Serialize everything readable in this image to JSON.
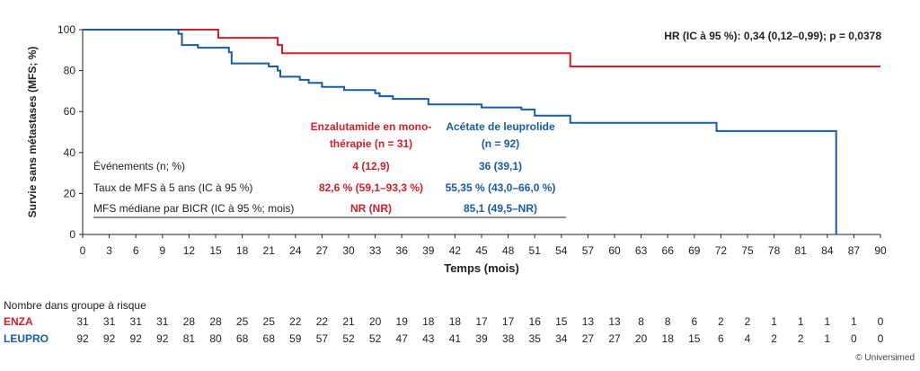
{
  "chart_data": {
    "type": "line",
    "step": true,
    "ylabel": "Survie sans métastases (MFS; %)",
    "xlabel": "Temps (mois)",
    "xlim": [
      0,
      90
    ],
    "ylim": [
      0,
      100
    ],
    "x_ticks": [
      0,
      3,
      6,
      9,
      12,
      15,
      18,
      21,
      24,
      27,
      30,
      33,
      36,
      39,
      42,
      45,
      48,
      51,
      54,
      57,
      60,
      63,
      66,
      69,
      72,
      75,
      78,
      81,
      84,
      87,
      90
    ],
    "y_ticks": [
      0,
      20,
      40,
      60,
      80,
      100
    ],
    "hr_text": "HR (IC à 95 %): 0,34 (0,12–0,99); p = 0,0378",
    "series": [
      {
        "name": "ENZA",
        "color": "#d0202a",
        "points": [
          [
            0,
            100
          ],
          [
            15.3,
            100
          ],
          [
            15.3,
            96
          ],
          [
            22,
            96
          ],
          [
            22,
            92.5
          ],
          [
            22.5,
            92.5
          ],
          [
            22.5,
            88.5
          ],
          [
            55,
            88.5
          ],
          [
            55,
            82
          ],
          [
            90,
            82
          ]
        ]
      },
      {
        "name": "LEUPRO",
        "color": "#1a5aa8",
        "points": [
          [
            0,
            100
          ],
          [
            10.8,
            100
          ],
          [
            10.8,
            98
          ],
          [
            11.2,
            98
          ],
          [
            11.2,
            92.5
          ],
          [
            13,
            92.5
          ],
          [
            13,
            91.2
          ],
          [
            16.5,
            91.2
          ],
          [
            16.5,
            89
          ],
          [
            16.8,
            89
          ],
          [
            16.8,
            83.5
          ],
          [
            21,
            83.5
          ],
          [
            21,
            82
          ],
          [
            22,
            82
          ],
          [
            22,
            80
          ],
          [
            22.3,
            80
          ],
          [
            22.3,
            77
          ],
          [
            24.5,
            77
          ],
          [
            24.5,
            75.5
          ],
          [
            25.5,
            75.5
          ],
          [
            25.5,
            74
          ],
          [
            27,
            74
          ],
          [
            27,
            72
          ],
          [
            29.5,
            72
          ],
          [
            29.5,
            70.5
          ],
          [
            33,
            70.5
          ],
          [
            33,
            69
          ],
          [
            33.5,
            69
          ],
          [
            33.5,
            67.5
          ],
          [
            35,
            67.5
          ],
          [
            35,
            66.2
          ],
          [
            39,
            66.2
          ],
          [
            39,
            63.5
          ],
          [
            45,
            63.5
          ],
          [
            45,
            62
          ],
          [
            49.5,
            62
          ],
          [
            49.5,
            61
          ],
          [
            51,
            61
          ],
          [
            51,
            58
          ],
          [
            55,
            58
          ],
          [
            55,
            54.5
          ],
          [
            71.5,
            54.5
          ],
          [
            71.5,
            50.5
          ],
          [
            85,
            50.5
          ],
          [
            85,
            0
          ]
        ]
      }
    ],
    "table": {
      "col_labels": [
        "Enzalutamide en mono-",
        "thérapie (n = 31)",
        "Acétate de leuprolide",
        "(n = 92)"
      ],
      "rows": [
        {
          "label": "Événements (n; %)",
          "enza": "4 (12,9)",
          "leupro": "36 (39,1)"
        },
        {
          "label": "Taux de MFS à 5 ans (IC à 95 %)",
          "enza": "82,6 % (59,1–93,3 %)",
          "leupro": "55,35 % (43,0–66,0 %)"
        },
        {
          "label": "MFS médiane par BICR (IC à 95 %; mois)",
          "enza": "NR (NR)",
          "leupro": "85,1 (49,5–NR)"
        }
      ]
    },
    "risk": {
      "title": "Nombre dans groupe à risque",
      "enza_label": "ENZA",
      "leupro_label": "LEUPRO",
      "enza": [
        "31",
        "31",
        "31",
        "31",
        "28",
        "28",
        "25",
        "25",
        "22",
        "22",
        "21",
        "20",
        "19",
        "18",
        "18",
        "17",
        "17",
        "16",
        "15",
        "13",
        "13",
        "8",
        "8",
        "6",
        "2",
        "2",
        "1",
        "1",
        "1",
        "1",
        "0"
      ],
      "leupro": [
        "92",
        "92",
        "92",
        "92",
        "81",
        "80",
        "68",
        "68",
        "59",
        "57",
        "52",
        "52",
        "47",
        "43",
        "41",
        "39",
        "38",
        "35",
        "34",
        "27",
        "27",
        "20",
        "18",
        "15",
        "6",
        "4",
        "2",
        "2",
        "1",
        "0",
        "0"
      ]
    },
    "copyright": "© Universimed"
  }
}
